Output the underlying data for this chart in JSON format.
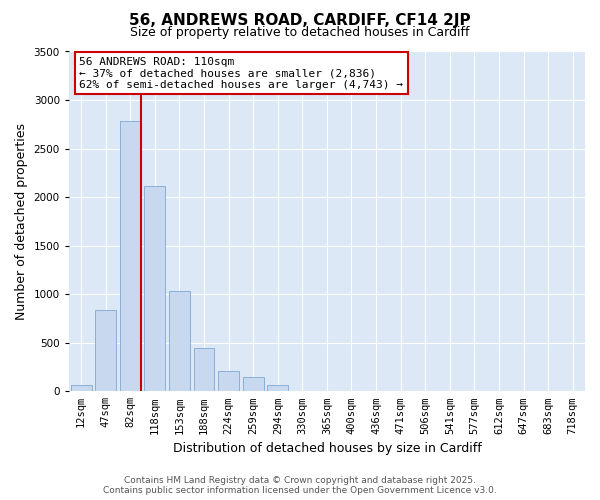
{
  "title": "56, ANDREWS ROAD, CARDIFF, CF14 2JP",
  "subtitle": "Size of property relative to detached houses in Cardiff",
  "bar_labels": [
    "12sqm",
    "47sqm",
    "82sqm",
    "118sqm",
    "153sqm",
    "188sqm",
    "224sqm",
    "259sqm",
    "294sqm",
    "330sqm",
    "365sqm",
    "400sqm",
    "436sqm",
    "471sqm",
    "506sqm",
    "541sqm",
    "577sqm",
    "612sqm",
    "647sqm",
    "683sqm",
    "718sqm"
  ],
  "bar_values": [
    60,
    840,
    2780,
    2110,
    1030,
    450,
    205,
    150,
    60,
    0,
    0,
    0,
    0,
    0,
    0,
    0,
    0,
    0,
    0,
    0,
    0
  ],
  "bar_color": "#c8d8ee",
  "bar_edgecolor": "#8ab0d8",
  "ylim": [
    0,
    3500
  ],
  "yticks": [
    0,
    500,
    1000,
    1500,
    2000,
    2500,
    3000,
    3500
  ],
  "ylabel": "Number of detached properties",
  "xlabel": "Distribution of detached houses by size in Cardiff",
  "property_line_label": "56 ANDREWS ROAD: 110sqm",
  "annotation_line1": "← 37% of detached houses are smaller (2,836)",
  "annotation_line2": "62% of semi-detached houses are larger (4,743) →",
  "vline_color": "#cc0000",
  "box_edgecolor": "#cc0000",
  "footnote1": "Contains HM Land Registry data © Crown copyright and database right 2025.",
  "footnote2": "Contains public sector information licensed under the Open Government Licence v3.0.",
  "fig_facecolor": "#ffffff",
  "plot_facecolor": "#dce8f5",
  "grid_color": "#ffffff",
  "title_fontsize": 11,
  "subtitle_fontsize": 9,
  "axis_label_fontsize": 9,
  "tick_fontsize": 7.5,
  "annot_fontsize": 8,
  "footnote_fontsize": 6.5
}
